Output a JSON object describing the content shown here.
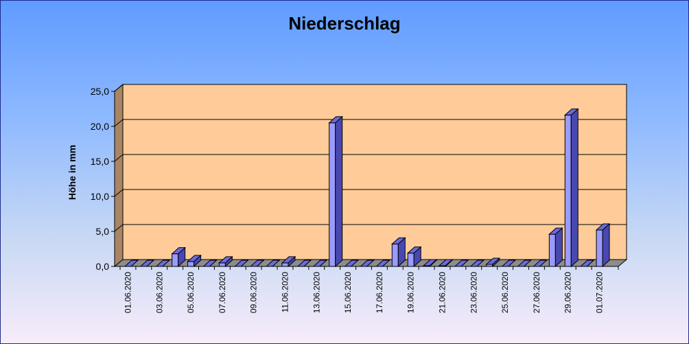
{
  "chart_data": {
    "type": "bar",
    "title": "Niederschlag",
    "xlabel": "",
    "ylabel": "Höhe in mm",
    "ylim": [
      0,
      25
    ],
    "yticks": [
      "0,0",
      "5,0",
      "10,0",
      "15,0",
      "20,0",
      "25,0"
    ],
    "grid": true,
    "legend": "none",
    "categories": [
      "01.06.2020",
      "02.06.2020",
      "03.06.2020",
      "04.06.2020",
      "05.06.2020",
      "06.06.2020",
      "07.06.2020",
      "08.06.2020",
      "09.06.2020",
      "10.06.2020",
      "11.06.2020",
      "12.06.2020",
      "13.06.2020",
      "14.06.2020",
      "15.06.2020",
      "16.06.2020",
      "17.06.2020",
      "18.06.2020",
      "19.06.2020",
      "20.06.2020",
      "21.06.2020",
      "22.06.2020",
      "23.06.2020",
      "24.06.2020",
      "25.06.2020",
      "26.06.2020",
      "27.06.2020",
      "28.06.2020",
      "29.06.2020",
      "30.06.2020",
      "01.07.2020"
    ],
    "xtick_labels": [
      "01.06.2020",
      "",
      "03.06.2020",
      "",
      "05.06.2020",
      "",
      "07.06.2020",
      "",
      "09.06.2020",
      "",
      "11.06.2020",
      "",
      "13.06.2020",
      "",
      "15.06.2020",
      "",
      "17.06.2020",
      "",
      "19.06.2020",
      "",
      "21.06.2020",
      "",
      "23.06.2020",
      "",
      "25.06.2020",
      "",
      "27.06.2020",
      "",
      "29.06.2020",
      "",
      "01.07.2020"
    ],
    "values": [
      0,
      0,
      0,
      1.8,
      0.7,
      0,
      0.5,
      0,
      0,
      0,
      0.5,
      0,
      0,
      20.5,
      0,
      0,
      0,
      3.2,
      1.9,
      0.1,
      0.1,
      0,
      0,
      0.3,
      0,
      0,
      0,
      4.6,
      21.6,
      0,
      5.2
    ],
    "colors": {
      "bar_front": "#9a9aff",
      "bar_side": "#4848b0",
      "bar_top": "#6a6adc",
      "plot_back": "#ffcc99",
      "plot_side": "#a98565",
      "plot_floor": "#8c8c8c",
      "gridline": "#000000"
    }
  }
}
